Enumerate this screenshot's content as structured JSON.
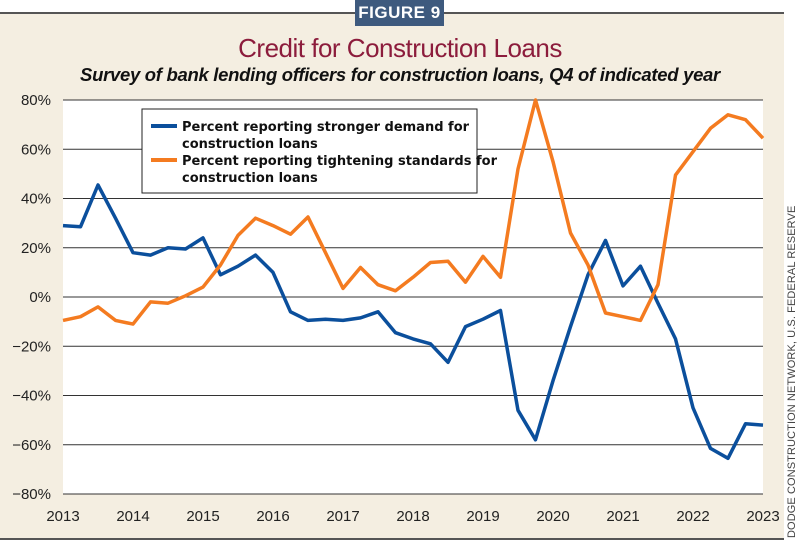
{
  "badge": "FIGURE 9",
  "source": "DODGE CONSTRUCTION NETWORK, U.S. FEDERAL RESERVE",
  "chart_data": {
    "type": "line",
    "title": "Credit for Construction Loans",
    "subtitle": "Survey of bank lending officers for construction loans, Q4 of indicated year",
    "xlabel": "",
    "ylabel": "",
    "xlim": [
      2013,
      2023
    ],
    "ylim": [
      -80,
      80
    ],
    "x_ticks": [
      "2013",
      "2014",
      "2015",
      "2016",
      "2017",
      "2018",
      "2019",
      "2020",
      "2021",
      "2022",
      "2023"
    ],
    "y_ticks": [
      "80%",
      "60%",
      "40%",
      "20%",
      "0%",
      "−20%",
      "−40%",
      "−60%",
      "−80%"
    ],
    "grid": true,
    "legend_position": "top-left",
    "x": [
      2013,
      2013.25,
      2013.5,
      2013.75,
      2014,
      2014.25,
      2014.5,
      2014.75,
      2015,
      2015.25,
      2015.5,
      2015.75,
      2016,
      2016.25,
      2016.5,
      2016.75,
      2017,
      2017.25,
      2017.5,
      2017.75,
      2018,
      2018.25,
      2018.5,
      2018.75,
      2019,
      2019.25,
      2019.5,
      2019.75,
      2020,
      2020.25,
      2020.5,
      2020.75,
      2021,
      2021.25,
      2021.5,
      2021.75,
      2022,
      2022.25,
      2022.5,
      2022.75,
      2023
    ],
    "series": [
      {
        "name": "Percent reporting stronger demand for construction loans",
        "color": "#0b4f9c",
        "values": [
          29,
          28.5,
          45.5,
          32,
          18,
          17,
          20,
          19.5,
          24,
          9,
          12.5,
          17,
          10,
          -6,
          -9.5,
          -9,
          -9.5,
          -8.5,
          -6,
          -14.5,
          -17,
          -19,
          -26.5,
          -12,
          -9,
          -5.5,
          -46,
          -58,
          -34,
          -12,
          9,
          23,
          4.5,
          12.5,
          -2.5,
          -17,
          -45,
          -61.5,
          -65.5,
          -51.5,
          -52
        ]
      },
      {
        "name": "Percent reporting tightening standards for construction loans",
        "color": "#f47b20",
        "values": [
          -9.5,
          -8,
          -4,
          -9.5,
          -11,
          -2,
          -2.5,
          0.5,
          4,
          13,
          25,
          32,
          29,
          25.5,
          32.5,
          18,
          3.5,
          12,
          5,
          2.5,
          8,
          14,
          14.5,
          6,
          16.5,
          8,
          52,
          80,
          55,
          26,
          13,
          -6.5,
          -8,
          -9.5,
          5,
          49.5,
          59,
          68.5,
          74,
          72,
          64.5
        ]
      }
    ]
  }
}
